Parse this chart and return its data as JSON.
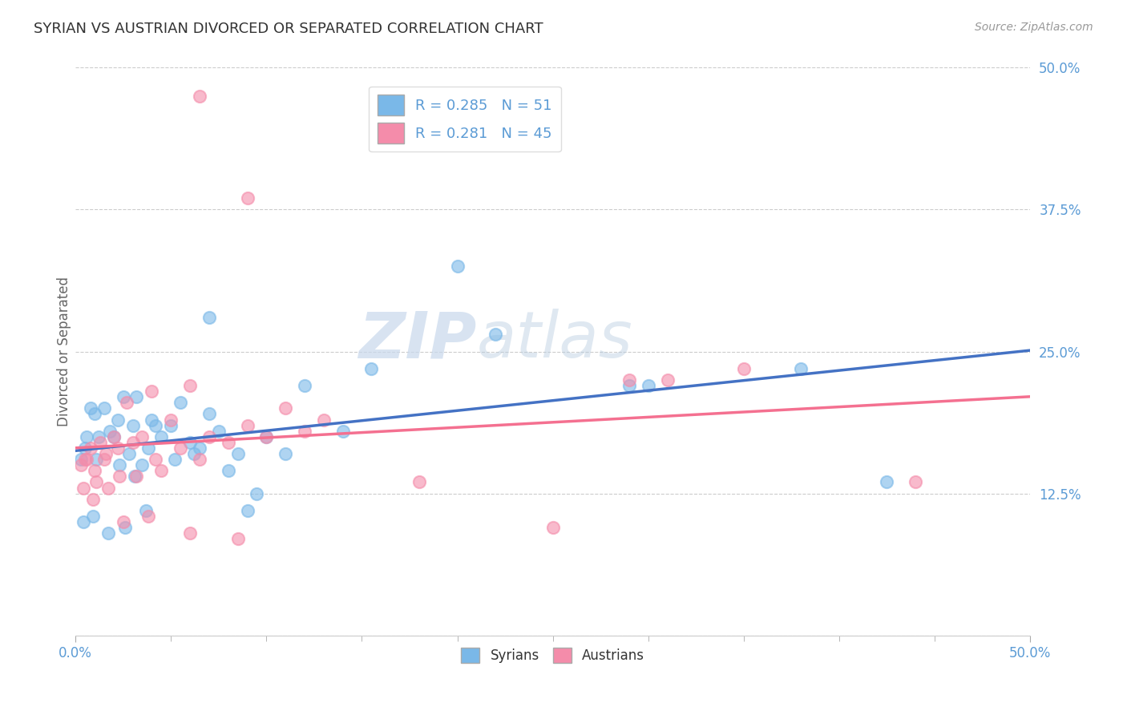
{
  "title": "SYRIAN VS AUSTRIAN DIVORCED OR SEPARATED CORRELATION CHART",
  "source": "Source: ZipAtlas.com",
  "ylabel": "Divorced or Separated",
  "syrian_color": "#7ab8e8",
  "austrian_color": "#f48caa",
  "syrian_line_color": "#4472c4",
  "austrian_line_color": "#f47090",
  "watermark_zip": "ZIP",
  "watermark_atlas": "atlas",
  "xlim": [
    0.0,
    50.0
  ],
  "ylim": [
    0.0,
    50.0
  ],
  "ytick_values": [
    0.0,
    12.5,
    25.0,
    37.5,
    50.0
  ],
  "ytick_labels": [
    "",
    "12.5%",
    "25.0%",
    "37.5%",
    "50.0%"
  ],
  "background_color": "#ffffff",
  "grid_color": "#cccccc",
  "tick_color": "#5b9bd5",
  "syrian_points": [
    [
      0.5,
      16.5
    ],
    [
      0.8,
      20.0
    ],
    [
      1.0,
      19.5
    ],
    [
      1.2,
      17.5
    ],
    [
      1.5,
      20.0
    ],
    [
      1.8,
      18.0
    ],
    [
      2.0,
      17.5
    ],
    [
      2.2,
      19.0
    ],
    [
      2.5,
      21.0
    ],
    [
      2.8,
      16.0
    ],
    [
      3.0,
      18.5
    ],
    [
      3.2,
      21.0
    ],
    [
      3.5,
      15.0
    ],
    [
      3.8,
      16.5
    ],
    [
      4.0,
      19.0
    ],
    [
      4.5,
      17.5
    ],
    [
      5.0,
      18.5
    ],
    [
      5.5,
      20.5
    ],
    [
      6.0,
      17.0
    ],
    [
      6.5,
      16.5
    ],
    [
      7.0,
      19.5
    ],
    [
      7.5,
      18.0
    ],
    [
      8.0,
      14.5
    ],
    [
      8.5,
      16.0
    ],
    [
      9.0,
      11.0
    ],
    [
      9.5,
      12.5
    ],
    [
      10.0,
      17.5
    ],
    [
      11.0,
      16.0
    ],
    [
      12.0,
      22.0
    ],
    [
      14.0,
      18.0
    ],
    [
      15.5,
      23.5
    ],
    [
      0.3,
      15.5
    ],
    [
      0.6,
      17.5
    ],
    [
      1.1,
      15.5
    ],
    [
      2.3,
      15.0
    ],
    [
      3.1,
      14.0
    ],
    [
      4.2,
      18.5
    ],
    [
      5.2,
      15.5
    ],
    [
      6.2,
      16.0
    ],
    [
      0.4,
      10.0
    ],
    [
      0.9,
      10.5
    ],
    [
      1.7,
      9.0
    ],
    [
      2.6,
      9.5
    ],
    [
      3.7,
      11.0
    ],
    [
      29.0,
      22.0
    ],
    [
      38.0,
      23.5
    ],
    [
      42.5,
      13.5
    ],
    [
      20.0,
      32.5
    ],
    [
      22.0,
      26.5
    ],
    [
      30.0,
      22.0
    ],
    [
      7.0,
      28.0
    ]
  ],
  "austrian_points": [
    [
      0.5,
      15.5
    ],
    [
      0.8,
      16.5
    ],
    [
      1.0,
      14.5
    ],
    [
      1.3,
      17.0
    ],
    [
      1.6,
      16.0
    ],
    [
      2.0,
      17.5
    ],
    [
      2.3,
      14.0
    ],
    [
      2.7,
      20.5
    ],
    [
      3.0,
      17.0
    ],
    [
      3.5,
      17.5
    ],
    [
      4.0,
      21.5
    ],
    [
      4.5,
      14.5
    ],
    [
      5.0,
      19.0
    ],
    [
      5.5,
      16.5
    ],
    [
      6.0,
      22.0
    ],
    [
      6.5,
      15.5
    ],
    [
      7.0,
      17.5
    ],
    [
      8.0,
      17.0
    ],
    [
      9.0,
      18.5
    ],
    [
      10.0,
      17.5
    ],
    [
      11.0,
      20.0
    ],
    [
      12.0,
      18.0
    ],
    [
      13.0,
      19.0
    ],
    [
      0.3,
      15.0
    ],
    [
      0.6,
      15.5
    ],
    [
      1.1,
      13.5
    ],
    [
      1.5,
      15.5
    ],
    [
      2.2,
      16.5
    ],
    [
      3.2,
      14.0
    ],
    [
      4.2,
      15.5
    ],
    [
      0.4,
      13.0
    ],
    [
      0.9,
      12.0
    ],
    [
      1.7,
      13.0
    ],
    [
      2.5,
      10.0
    ],
    [
      3.8,
      10.5
    ],
    [
      6.0,
      9.0
    ],
    [
      8.5,
      8.5
    ],
    [
      18.0,
      13.5
    ],
    [
      25.0,
      9.5
    ],
    [
      29.0,
      22.5
    ],
    [
      31.0,
      22.5
    ],
    [
      44.0,
      13.5
    ],
    [
      9.0,
      38.5
    ],
    [
      6.5,
      47.5
    ],
    [
      35.0,
      23.5
    ]
  ]
}
